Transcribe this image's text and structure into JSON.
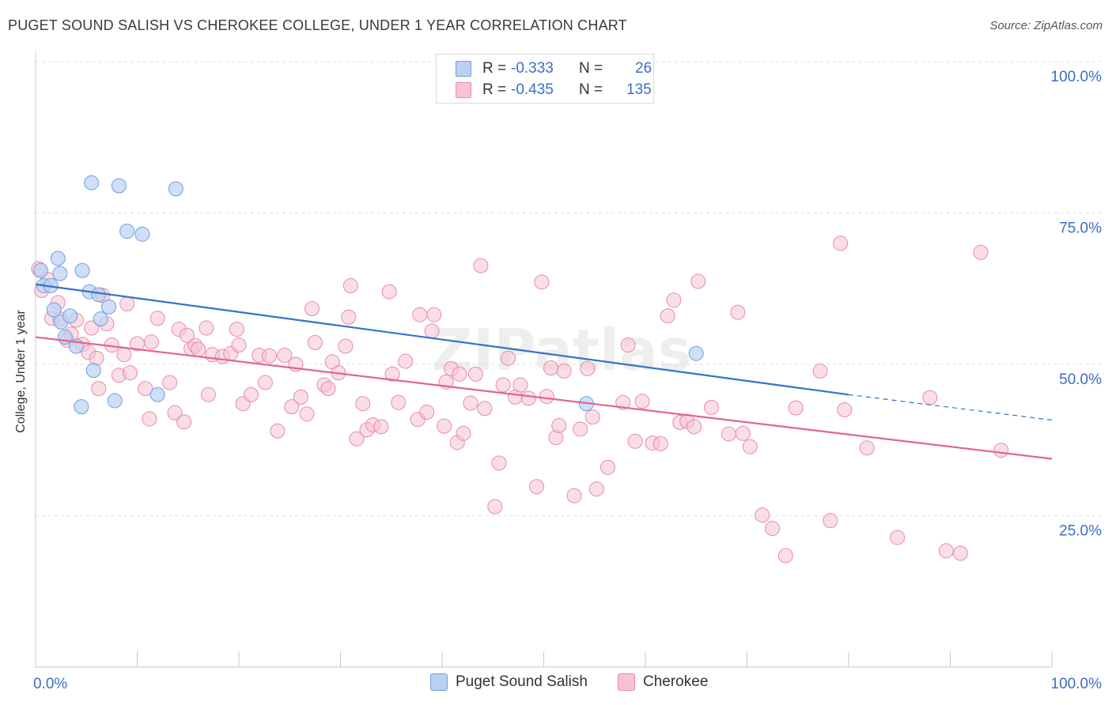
{
  "title": "PUGET SOUND SALISH VS CHEROKEE COLLEGE, UNDER 1 YEAR CORRELATION CHART",
  "source": "Source: ZipAtlas.com",
  "legend": {
    "rows": [
      {
        "r_label": "R =",
        "r_value": "-0.333",
        "n_label": "N =",
        "n_value": "26"
      },
      {
        "r_label": "R =",
        "r_value": "-0.435",
        "n_label": "N =",
        "n_value": "135"
      }
    ]
  },
  "colors": {
    "blue_fill": "#b9d1f2",
    "blue_stroke": "#6f9fe0",
    "blue_line": "#3372cf",
    "pink_fill": "#f6c3d2",
    "pink_stroke": "#e98aa8",
    "pink_line": "#e2648f",
    "axis_text": "#3a6fc4",
    "grid": "#dedede"
  },
  "chart_data": {
    "type": "scatter",
    "title": "PUGET SOUND SALISH VS CHEROKEE COLLEGE, UNDER 1 YEAR CORRELATION CHART",
    "xlabel": "",
    "ylabel": "College, Under 1 year",
    "xlim": [
      0,
      100
    ],
    "ylim": [
      0,
      100
    ],
    "x_tick_labels": [
      "0.0%",
      "100.0%"
    ],
    "y_tick_labels": [
      "25.0%",
      "50.0%",
      "75.0%",
      "100.0%"
    ],
    "grid": true,
    "watermark": "ZIPatlas",
    "series": [
      {
        "name": "Puget Sound Salish",
        "color": "#b9d1f2",
        "points": [
          [
            0.5,
            65.5
          ],
          [
            0.8,
            63
          ],
          [
            1.5,
            63
          ],
          [
            1.8,
            59
          ],
          [
            2.2,
            67.5
          ],
          [
            2.4,
            65
          ],
          [
            2.5,
            57
          ],
          [
            2.9,
            54.5
          ],
          [
            3.4,
            58
          ],
          [
            4,
            53
          ],
          [
            4.5,
            43
          ],
          [
            4.6,
            65.5
          ],
          [
            5.3,
            62
          ],
          [
            5.5,
            80
          ],
          [
            5.7,
            49
          ],
          [
            6.2,
            61.5
          ],
          [
            6.4,
            57.5
          ],
          [
            7.2,
            59.5
          ],
          [
            7.8,
            44
          ],
          [
            8.2,
            79.5
          ],
          [
            9,
            72
          ],
          [
            10.5,
            71.5
          ],
          [
            13.8,
            79
          ],
          [
            12,
            45
          ],
          [
            54.2,
            43.5
          ],
          [
            65,
            51.8
          ]
        ]
      },
      {
        "name": "Cherokee",
        "color": "#f6c3d2",
        "points": [
          [
            0.3,
            65.8
          ],
          [
            0.6,
            62.2
          ],
          [
            1.2,
            64
          ],
          [
            1.6,
            57.6
          ],
          [
            2.2,
            60.2
          ],
          [
            2.4,
            57.5
          ],
          [
            3.1,
            54
          ],
          [
            3.5,
            55
          ],
          [
            4,
            57.3
          ],
          [
            4.6,
            53.3
          ],
          [
            5.2,
            52
          ],
          [
            5.5,
            56
          ],
          [
            6,
            51
          ],
          [
            6.2,
            46
          ],
          [
            6.6,
            61.4
          ],
          [
            7,
            56.7
          ],
          [
            7.5,
            53.2
          ],
          [
            8.2,
            48.2
          ],
          [
            8.7,
            51.6
          ],
          [
            9,
            60
          ],
          [
            9.3,
            48.6
          ],
          [
            10,
            53.4
          ],
          [
            10.8,
            46
          ],
          [
            11.2,
            41
          ],
          [
            11.4,
            53.7
          ],
          [
            12,
            57.6
          ],
          [
            13.2,
            47
          ],
          [
            13.7,
            42
          ],
          [
            14.1,
            55.8
          ],
          [
            14.6,
            40.5
          ],
          [
            14.9,
            54.8
          ],
          [
            15.3,
            52.6
          ],
          [
            15.7,
            53.1
          ],
          [
            16,
            52.5
          ],
          [
            16.8,
            56
          ],
          [
            17,
            45
          ],
          [
            17.4,
            51.6
          ],
          [
            18.4,
            51.3
          ],
          [
            19.2,
            51.8
          ],
          [
            19.8,
            55.8
          ],
          [
            20,
            53.2
          ],
          [
            20.4,
            43.5
          ],
          [
            21.2,
            45
          ],
          [
            22,
            51.5
          ],
          [
            22.6,
            47
          ],
          [
            23,
            51.4
          ],
          [
            23.8,
            39
          ],
          [
            24.5,
            51.5
          ],
          [
            25.2,
            43
          ],
          [
            25.6,
            50
          ],
          [
            26.1,
            44.6
          ],
          [
            26.7,
            41.8
          ],
          [
            27.2,
            59.2
          ],
          [
            27.5,
            53.6
          ],
          [
            28.4,
            46.6
          ],
          [
            28.8,
            46
          ],
          [
            29.2,
            50.4
          ],
          [
            29.8,
            48.6
          ],
          [
            30.5,
            53
          ],
          [
            30.8,
            57.8
          ],
          [
            31,
            63
          ],
          [
            31.6,
            37.7
          ],
          [
            32.2,
            43.5
          ],
          [
            32.6,
            39.2
          ],
          [
            33.2,
            40
          ],
          [
            34,
            39.7
          ],
          [
            34.8,
            62
          ],
          [
            35.1,
            48.4
          ],
          [
            35.7,
            43.7
          ],
          [
            36.4,
            50.5
          ],
          [
            37.6,
            40.9
          ],
          [
            37.8,
            58.2
          ],
          [
            38.5,
            42.1
          ],
          [
            39,
            55.5
          ],
          [
            39.2,
            58.2
          ],
          [
            40.2,
            39.8
          ],
          [
            40.4,
            47.1
          ],
          [
            40.9,
            49.3
          ],
          [
            41.5,
            37.1
          ],
          [
            41.7,
            48.4
          ],
          [
            42.1,
            38.6
          ],
          [
            42.8,
            43.6
          ],
          [
            43.3,
            48.4
          ],
          [
            43.8,
            66.3
          ],
          [
            44.2,
            42.7
          ],
          [
            45.2,
            26.5
          ],
          [
            45.6,
            33.7
          ],
          [
            46,
            46.6
          ],
          [
            46.5,
            51
          ],
          [
            47.2,
            44.6
          ],
          [
            47.7,
            46.6
          ],
          [
            48.5,
            44.4
          ],
          [
            49.3,
            29.8
          ],
          [
            49.8,
            63.6
          ],
          [
            50.3,
            44.7
          ],
          [
            50.7,
            49.4
          ],
          [
            51.2,
            37.9
          ],
          [
            51.5,
            39.9
          ],
          [
            52,
            48.9
          ],
          [
            53,
            28.3
          ],
          [
            53.6,
            39.3
          ],
          [
            54.3,
            49.3
          ],
          [
            54.8,
            41.3
          ],
          [
            55.2,
            29.4
          ],
          [
            56.3,
            33
          ],
          [
            57.8,
            43.7
          ],
          [
            58.3,
            53.2
          ],
          [
            59,
            37.3
          ],
          [
            59.7,
            43.9
          ],
          [
            60.7,
            37
          ],
          [
            61.5,
            36.9
          ],
          [
            62.2,
            58
          ],
          [
            62.8,
            60.6
          ],
          [
            63.4,
            40.4
          ],
          [
            64.1,
            40.6
          ],
          [
            64.8,
            39.7
          ],
          [
            65.2,
            63.7
          ],
          [
            66.5,
            42.9
          ],
          [
            68.2,
            38.5
          ],
          [
            69.1,
            58.6
          ],
          [
            69.6,
            38.6
          ],
          [
            70.3,
            36.4
          ],
          [
            71.5,
            25.1
          ],
          [
            72.5,
            22.9
          ],
          [
            73.8,
            18.4
          ],
          [
            74.8,
            42.8
          ],
          [
            77.2,
            48.9
          ],
          [
            78.2,
            24.2
          ],
          [
            79.2,
            70
          ],
          [
            79.6,
            42.5
          ],
          [
            81.8,
            36.2
          ],
          [
            84.8,
            21.4
          ],
          [
            88,
            44.5
          ],
          [
            89.6,
            19.2
          ],
          [
            91,
            18.8
          ],
          [
            93,
            68.5
          ],
          [
            95,
            35.8
          ]
        ]
      }
    ],
    "trend_lines": [
      {
        "series": "Puget Sound Salish",
        "x": [
          0,
          80
        ],
        "y": [
          63.2,
          45
        ],
        "dashed_extension_x": [
          80,
          100
        ],
        "dashed_extension_y": [
          45,
          40.8
        ]
      },
      {
        "series": "Cherokee",
        "x": [
          0,
          100
        ],
        "y": [
          54.5,
          34.4
        ]
      }
    ]
  }
}
